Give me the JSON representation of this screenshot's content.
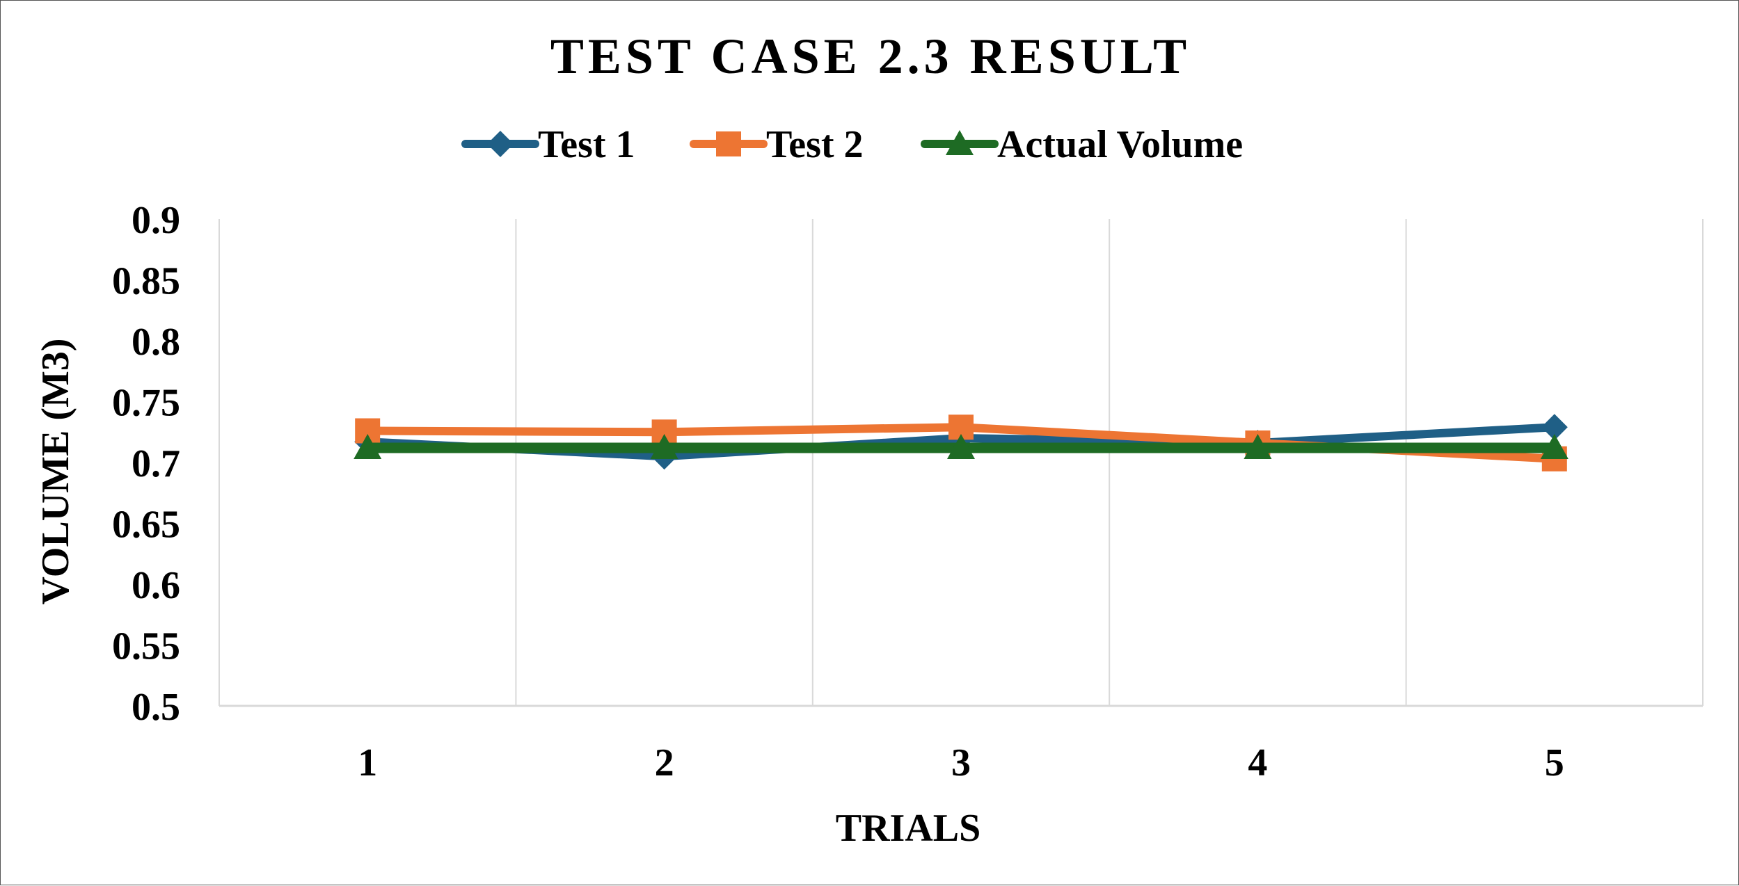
{
  "chart_data": {
    "type": "line",
    "title": "TEST CASE 2.3 RESULT",
    "xlabel": "TRIALS",
    "ylabel": "VOLUME (M3)",
    "categories": [
      "1",
      "2",
      "3",
      "4",
      "5"
    ],
    "y_ticks": [
      "0.5",
      "0.55",
      "0.6",
      "0.65",
      "0.7",
      "0.75",
      "0.8",
      "0.85",
      "0.9"
    ],
    "ylim": [
      0.5,
      0.9
    ],
    "grid": "vertical",
    "legend_position": "top",
    "series": [
      {
        "name": "Test 1",
        "marker": "diamond",
        "color": "#1f5f86",
        "values": [
          0.717,
          0.705,
          0.72,
          0.716,
          0.729
        ]
      },
      {
        "name": "Test 2",
        "marker": "square",
        "color": "#ed7533",
        "values": [
          0.726,
          0.725,
          0.729,
          0.716,
          0.703
        ]
      },
      {
        "name": "Actual Volume",
        "marker": "triangle",
        "color": "#1e6b24",
        "values": [
          0.712,
          0.712,
          0.712,
          0.712,
          0.712
        ]
      }
    ]
  }
}
